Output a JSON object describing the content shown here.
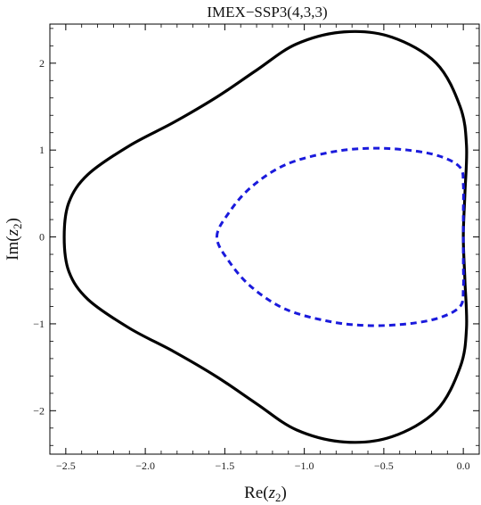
{
  "chart_data": {
    "type": "line",
    "title": "IMEX−SSP3(4,3,3)",
    "xlabel": {
      "pre": "Re(",
      "var": "z",
      "sub": "2",
      "post": ")"
    },
    "ylabel": {
      "pre": "Im(",
      "var": "z",
      "sub": "2",
      "post": ")"
    },
    "xlim": [
      -2.6,
      0.1
    ],
    "ylim": [
      -2.5,
      2.45
    ],
    "grid": false,
    "xticks": [
      {
        "value": -2.5,
        "label": "−2.5"
      },
      {
        "value": -2.0,
        "label": "−2.0"
      },
      {
        "value": -1.5,
        "label": "−1.5"
      },
      {
        "value": -1.0,
        "label": "−1.0"
      },
      {
        "value": -0.5,
        "label": "−0.5"
      },
      {
        "value": 0.0,
        "label": "0.0"
      }
    ],
    "yticks": [
      {
        "value": -2,
        "label": "−2"
      },
      {
        "value": -1,
        "label": "−1"
      },
      {
        "value": 0,
        "label": "0"
      },
      {
        "value": 1,
        "label": "1"
      },
      {
        "value": 2,
        "label": "2"
      }
    ],
    "series": [
      {
        "style": "solid",
        "color": "#000000",
        "closed": true,
        "points": [
          [
            -2.51,
            0.0
          ],
          [
            -2.48,
            0.4
          ],
          [
            -2.36,
            0.72
          ],
          [
            -2.1,
            1.05
          ],
          [
            -1.82,
            1.32
          ],
          [
            -1.55,
            1.61
          ],
          [
            -1.3,
            1.92
          ],
          [
            -1.05,
            2.22
          ],
          [
            -0.75,
            2.36
          ],
          [
            -0.45,
            2.3
          ],
          [
            -0.17,
            2.0
          ],
          [
            -0.02,
            1.5
          ],
          [
            0.02,
            1.05
          ],
          [
            0.01,
            0.5
          ],
          [
            0.0,
            0.0
          ],
          [
            0.01,
            -0.5
          ],
          [
            0.02,
            -1.05
          ],
          [
            -0.02,
            -1.5
          ],
          [
            -0.17,
            -2.0
          ],
          [
            -0.45,
            -2.3
          ],
          [
            -0.75,
            -2.36
          ],
          [
            -1.05,
            -2.22
          ],
          [
            -1.3,
            -1.92
          ],
          [
            -1.55,
            -1.61
          ],
          [
            -1.82,
            -1.32
          ],
          [
            -2.1,
            -1.05
          ],
          [
            -2.36,
            -0.72
          ],
          [
            -2.48,
            -0.4
          ]
        ]
      },
      {
        "style": "dashed",
        "color": "#1a1adc",
        "closed": true,
        "points": [
          [
            -1.55,
            0.0
          ],
          [
            -1.47,
            0.29
          ],
          [
            -1.33,
            0.58
          ],
          [
            -1.12,
            0.83
          ],
          [
            -0.85,
            0.97
          ],
          [
            -0.6,
            1.02
          ],
          [
            -0.35,
            1.0
          ],
          [
            -0.15,
            0.93
          ],
          [
            -0.02,
            0.8
          ],
          [
            0.0,
            0.6
          ],
          [
            0.0,
            0.3
          ],
          [
            0.0,
            0.0
          ],
          [
            0.0,
            -0.3
          ],
          [
            0.0,
            -0.6
          ],
          [
            -0.02,
            -0.8
          ],
          [
            -0.15,
            -0.93
          ],
          [
            -0.35,
            -1.0
          ],
          [
            -0.6,
            -1.02
          ],
          [
            -0.85,
            -0.97
          ],
          [
            -1.12,
            -0.83
          ],
          [
            -1.33,
            -0.58
          ],
          [
            -1.47,
            -0.29
          ]
        ]
      }
    ]
  }
}
